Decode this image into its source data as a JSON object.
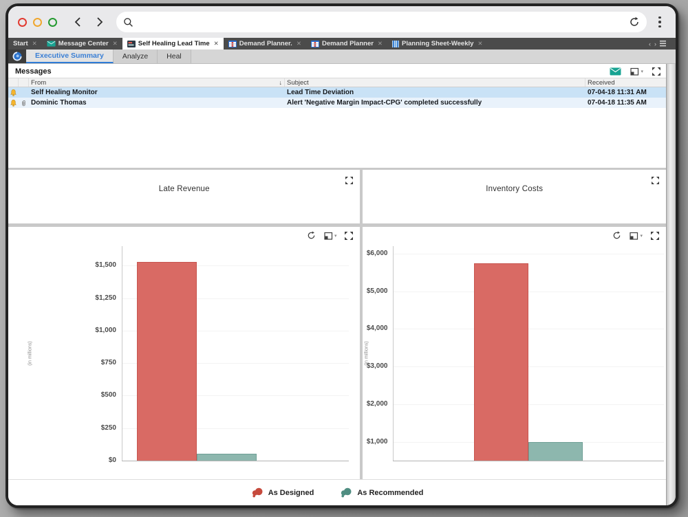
{
  "browser": {
    "traffic_lights": [
      "#e23a30",
      "#f0a72e",
      "#259a31"
    ],
    "search_placeholder": ""
  },
  "tab_bar": {
    "tabs": [
      {
        "label": "Start",
        "icon": "",
        "active": false
      },
      {
        "label": "Message Center",
        "icon": "envelope",
        "active": false
      },
      {
        "label": "Self Healing Lead Time",
        "icon": "dashboard",
        "active": true
      },
      {
        "label": "Demand Planner.",
        "icon": "spreadsheet",
        "active": false
      },
      {
        "label": "Demand Planner",
        "icon": "spreadsheet",
        "active": false
      },
      {
        "label": "Planning Sheet-Weekly",
        "icon": "sheet",
        "active": false
      }
    ]
  },
  "subtab_bar": {
    "tabs": [
      {
        "label": "Executive Summary",
        "active": true
      },
      {
        "label": "Analyze",
        "active": false
      },
      {
        "label": "Heal",
        "active": false
      }
    ]
  },
  "messages": {
    "title": "Messages",
    "columns": [
      "From",
      "Subject",
      "Received"
    ],
    "sort_column": "From",
    "rows": [
      {
        "icons": [
          "bell"
        ],
        "from": "Self Healing Monitor",
        "subject": "Lead Time Deviation",
        "received": "07-04-18 11:31 AM",
        "selected": true
      },
      {
        "icons": [
          "bell",
          "paperclip"
        ],
        "from": "Dominic Thomas",
        "subject": "Alert 'Negative Margin Impact-CPG' completed successfully",
        "received": "07-04-18 11:35 AM",
        "selected": false
      }
    ]
  },
  "panels": [
    {
      "title": "Late Revenue"
    },
    {
      "title": "Inventory Costs"
    }
  ],
  "chart_data": [
    {
      "type": "bar",
      "title": "Late Revenue",
      "ylabel": "(in millions)",
      "categories": [
        "As Designed",
        "As Recommended"
      ],
      "values": [
        1530,
        55
      ],
      "bar_colors": [
        "#d96a64",
        "#8db7ae"
      ],
      "bar_border_colors": [
        "#c7554f",
        "#6fa096"
      ],
      "ytick_values": [
        0,
        250,
        500,
        750,
        1000,
        1250,
        1500
      ],
      "ytick_labels": [
        "$0",
        "$250",
        "$500",
        "$750",
        "$1,000",
        "$1,250",
        "$1,500"
      ],
      "ylim": [
        0,
        1650
      ],
      "grid": true,
      "legend_position": "bottom-shared"
    },
    {
      "type": "bar",
      "title": "Inventory Costs",
      "ylabel": "(in millions)",
      "categories": [
        "As Designed",
        "As Recommended"
      ],
      "values": [
        5750,
        1000
      ],
      "bar_colors": [
        "#d96a64",
        "#8db7ae"
      ],
      "bar_border_colors": [
        "#c7554f",
        "#6fa096"
      ],
      "ytick_values": [
        1000,
        2000,
        3000,
        4000,
        5000,
        6000
      ],
      "ytick_labels": [
        "$1,000",
        "$2,000",
        "$3,000",
        "$4,000",
        "$5,000",
        "$6,000"
      ],
      "ylim": [
        500,
        6200
      ],
      "grid": true,
      "legend_position": "bottom-shared"
    }
  ],
  "legend": [
    {
      "label": "As Designed",
      "color": "#c64a3d"
    },
    {
      "label": "As Recommended",
      "color": "#4f8d81"
    }
  ],
  "colors": {
    "accent_blue": "#3a7fd5",
    "bar_red": "#d96a64",
    "bar_teal": "#8db7ae",
    "selected_row": "#c9e2f6",
    "alt_row": "#e9f2fb",
    "envelope_teal": "#17a392",
    "bell_yellow": "#f5b52e",
    "tabbar_dark": "#4b4b4b"
  }
}
